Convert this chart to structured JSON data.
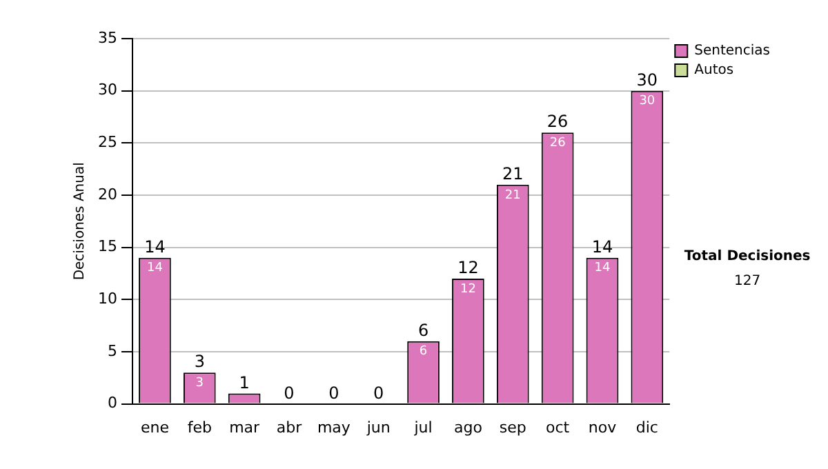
{
  "chart_data": {
    "type": "bar",
    "stacked": true,
    "ylabel": "Decisiones Anual",
    "categories": [
      "ene",
      "feb",
      "mar",
      "abr",
      "may",
      "jun",
      "jul",
      "ago",
      "sep",
      "oct",
      "nov",
      "dic"
    ],
    "series": [
      {
        "name": "Sentencias",
        "color": "#dd77bb",
        "values": [
          14,
          3,
          1,
          0,
          0,
          0,
          6,
          12,
          21,
          26,
          14,
          30
        ],
        "value_labels": [
          "14",
          "3",
          null,
          null,
          null,
          null,
          "6",
          "12",
          "21",
          "26",
          "14",
          "30"
        ]
      },
      {
        "name": "Autos",
        "color": "#ccdd99",
        "values": [
          0,
          0,
          0,
          0,
          0,
          0,
          0,
          0,
          0,
          0,
          0,
          0
        ]
      }
    ],
    "totals": [
      "14",
      "3",
      "1",
      "0",
      "0",
      "0",
      "6",
      "12",
      "21",
      "26",
      "14",
      "30"
    ],
    "ylim": [
      0,
      35
    ],
    "yticks": [
      0,
      5,
      10,
      15,
      20,
      25,
      30,
      35
    ],
    "grid": "y",
    "legend": "right",
    "annotations": [
      "Total Decisiones",
      "127"
    ]
  }
}
